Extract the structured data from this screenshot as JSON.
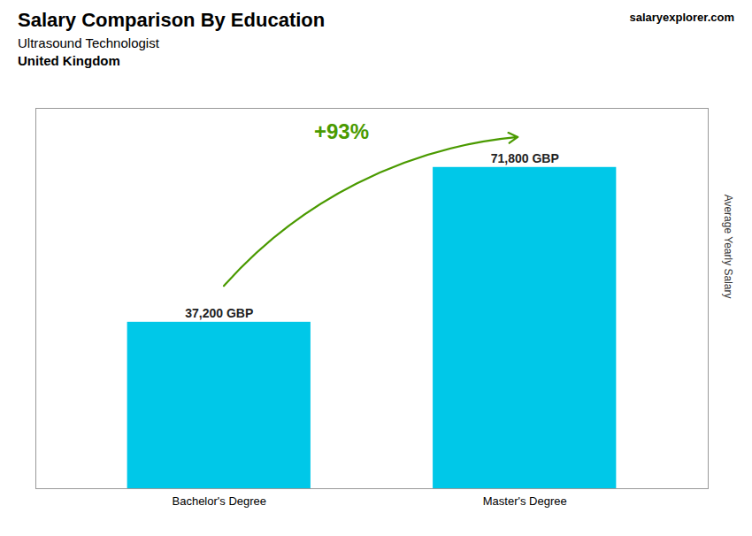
{
  "chart_data": {
    "type": "bar",
    "title": "Salary Comparison By Education",
    "subtitle": "Ultrasound Technologist",
    "categories": [
      "Bachelor's Degree",
      "Master's Degree"
    ],
    "values": [
      37200,
      71800
    ],
    "value_labels": [
      "37,200 GBP",
      "71,800 GBP"
    ],
    "data_labels": true,
    "color": "#00C8E8",
    "ylabel": "Average Yearly Salary",
    "ylim": [
      0,
      85000
    ],
    "tick_labels": "x",
    "grid": false,
    "annotations": [
      {
        "text": "+93%",
        "type": "arrow"
      },
      {
        "text": "United Kingdom"
      },
      {
        "text": "salaryexplorer.com"
      }
    ]
  }
}
